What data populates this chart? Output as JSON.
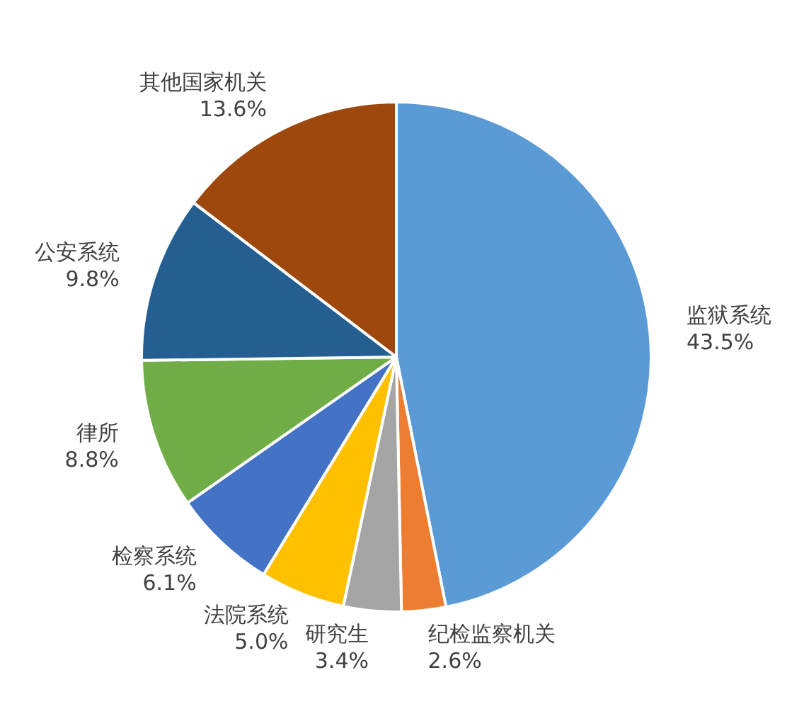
{
  "chart_data": {
    "type": "pie",
    "categories": [
      "监狱系统",
      "纪检监察机关",
      "研究生",
      "法院系统",
      "检察系统",
      "律所",
      "公安系统",
      "其他国家机关"
    ],
    "values": [
      43.5,
      2.6,
      3.4,
      5.0,
      6.1,
      8.8,
      9.8,
      13.6
    ],
    "value_labels": [
      "43.5%",
      "2.6%",
      "3.4%",
      "5.0%",
      "6.1%",
      "8.8%",
      "9.8%",
      "13.6%"
    ],
    "colors": [
      "#5b9bd5",
      "#ed7d31",
      "#a5a5a5",
      "#ffc000",
      "#4472c4",
      "#70ad47",
      "#255e91",
      "#9e480e"
    ]
  }
}
